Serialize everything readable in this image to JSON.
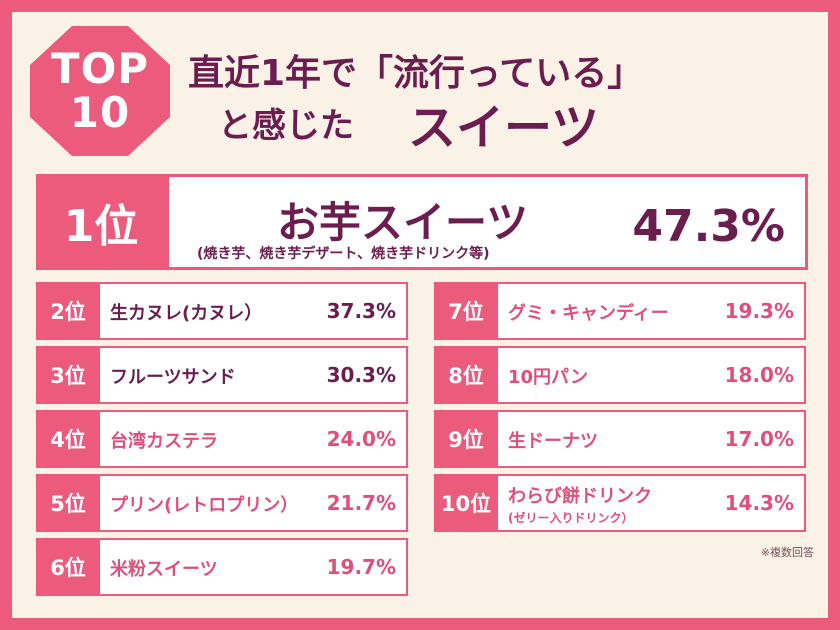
{
  "badge": {
    "line1": "TOP",
    "line2": "10"
  },
  "headline": {
    "line1": "直近1年で「流行っている」",
    "line2": "と感じた",
    "emphasis": "スイーツ"
  },
  "first": {
    "rank": "1位",
    "name": "お芋スイーツ",
    "sub": "(焼き芋、焼き芋デザート、焼き芋ドリンク等)",
    "percent": "47.3%"
  },
  "ranking_left": [
    {
      "rank": "2位",
      "name": "生カヌレ(カヌレ）",
      "percent": "37.3%",
      "color": "dark"
    },
    {
      "rank": "3位",
      "name": "フルーツサンド",
      "percent": "30.3%",
      "color": "dark"
    },
    {
      "rank": "4位",
      "name": "台湾カステラ",
      "percent": "24.0%",
      "color": "pink"
    },
    {
      "rank": "5位",
      "name": "プリン(レトロプリン）",
      "percent": "21.7%",
      "color": "pink"
    },
    {
      "rank": "6位",
      "name": "米粉スイーツ",
      "percent": "19.7%",
      "color": "pink"
    }
  ],
  "ranking_right": [
    {
      "rank": "7位",
      "name": "グミ・キャンディー",
      "percent": "19.3%",
      "color": "pink"
    },
    {
      "rank": "8位",
      "name": "10円パン",
      "percent": "18.0%",
      "color": "pink"
    },
    {
      "rank": "9位",
      "name": "生ドーナツ",
      "percent": "17.0%",
      "color": "pink"
    },
    {
      "rank": "10位",
      "name": "わらび餅ドリンク",
      "sub": "(ゼリー入りドリンク）",
      "percent": "14.3%",
      "color": "pink"
    }
  ],
  "note": "※複数回答",
  "colors": {
    "accent": "#ec5a7c",
    "dark": "#6c1d4f",
    "pink": "#e04f7a",
    "background": "#fbf2e7"
  }
}
